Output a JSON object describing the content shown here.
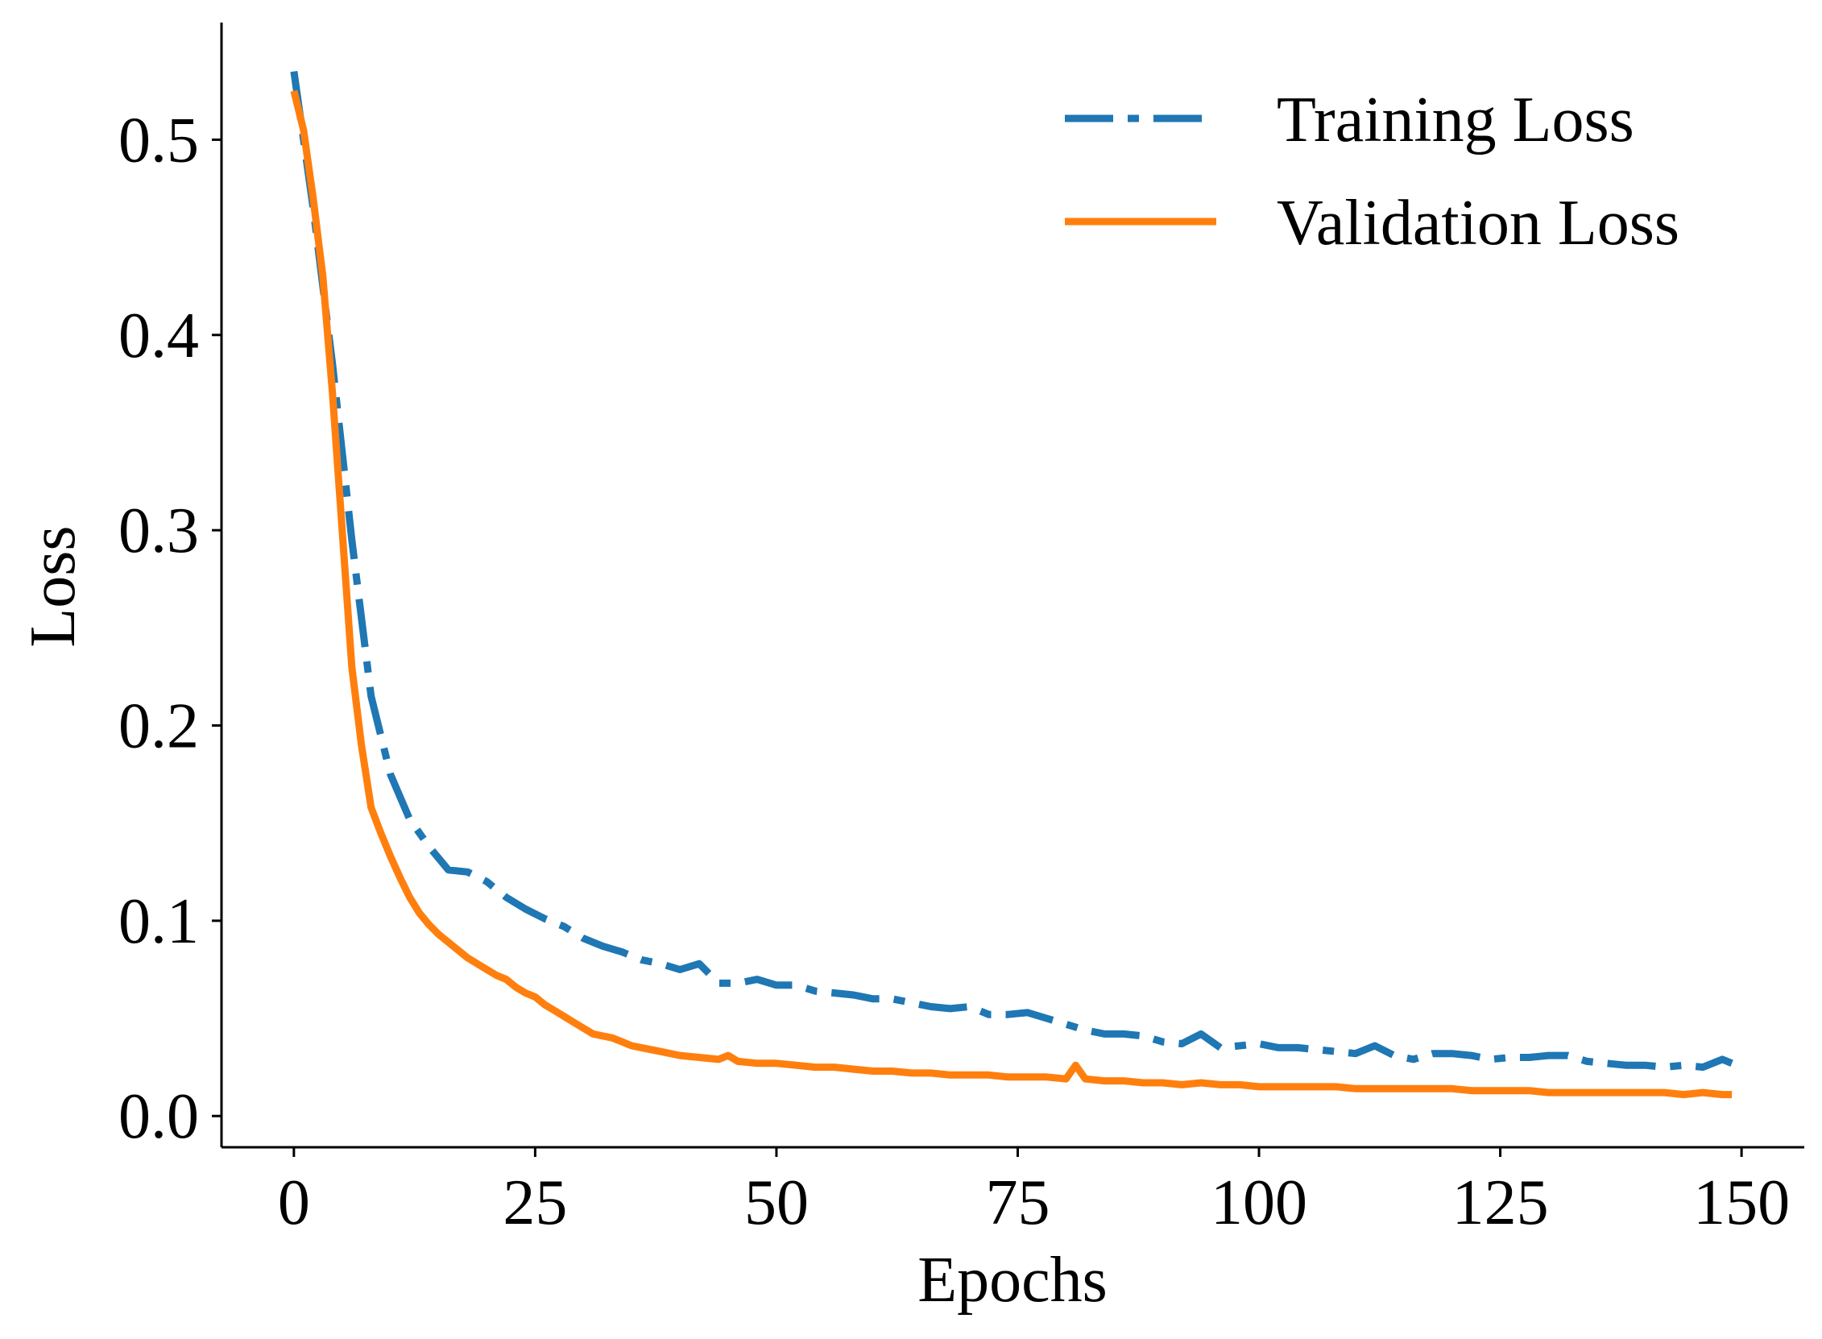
{
  "chart_data": {
    "type": "line",
    "title": "",
    "xlabel": "Epochs",
    "ylabel": "Loss",
    "xlim": [
      -7.5,
      156.5
    ],
    "ylim": [
      -0.016,
      0.56
    ],
    "xticks": [
      0,
      25,
      50,
      75,
      100,
      125,
      150
    ],
    "xtick_labels": [
      "0",
      "25",
      "50",
      "75",
      "100",
      "125",
      "150"
    ],
    "yticks": [
      0.0,
      0.1,
      0.2,
      0.3,
      0.4,
      0.5
    ],
    "ytick_labels": [
      "0.0",
      "0.1",
      "0.2",
      "0.3",
      "0.4",
      "0.5"
    ],
    "grid": false,
    "legend_position": "top-right",
    "series": [
      {
        "name": "Training Loss",
        "color": "#1f77b4",
        "style": "dashdot",
        "x": [
          0,
          2,
          4,
          6,
          8,
          10,
          12,
          14,
          16,
          18,
          20,
          22,
          24,
          26,
          28,
          30,
          32,
          34,
          36,
          38,
          40,
          42,
          44,
          46,
          48,
          50,
          52,
          54,
          56,
          58,
          60,
          62,
          64,
          66,
          68,
          70,
          72,
          74,
          76,
          78,
          80,
          82,
          84,
          86,
          88,
          90,
          92,
          94,
          96,
          98,
          100,
          102,
          104,
          106,
          108,
          110,
          112,
          114,
          116,
          118,
          120,
          122,
          124,
          126,
          128,
          130,
          132,
          134,
          136,
          138,
          140,
          142,
          144,
          146,
          148,
          149
        ],
        "y": [
          0.535,
          0.465,
          0.385,
          0.295,
          0.215,
          0.175,
          0.152,
          0.138,
          0.126,
          0.125,
          0.12,
          0.112,
          0.106,
          0.101,
          0.097,
          0.091,
          0.087,
          0.084,
          0.08,
          0.078,
          0.075,
          0.078,
          0.068,
          0.068,
          0.07,
          0.067,
          0.067,
          0.064,
          0.063,
          0.062,
          0.06,
          0.06,
          0.058,
          0.056,
          0.055,
          0.056,
          0.052,
          0.052,
          0.053,
          0.05,
          0.047,
          0.044,
          0.042,
          0.042,
          0.041,
          0.038,
          0.037,
          0.042,
          0.035,
          0.036,
          0.037,
          0.035,
          0.035,
          0.034,
          0.033,
          0.032,
          0.036,
          0.031,
          0.029,
          0.032,
          0.032,
          0.031,
          0.029,
          0.03,
          0.03,
          0.031,
          0.031,
          0.028,
          0.027,
          0.026,
          0.026,
          0.025,
          0.026,
          0.025,
          0.029,
          0.027
        ]
      },
      {
        "name": "Validation Loss",
        "color": "#ff7f0e",
        "style": "solid",
        "x": [
          0,
          1,
          2,
          3,
          4,
          5,
          6,
          7,
          8,
          9,
          10,
          11,
          12,
          13,
          14,
          15,
          16,
          17,
          18,
          19,
          20,
          21,
          22,
          23,
          24,
          25,
          26,
          27,
          28,
          29,
          30,
          31,
          32,
          33,
          34,
          35,
          36,
          38,
          40,
          42,
          44,
          45,
          46,
          48,
          50,
          52,
          54,
          56,
          58,
          60,
          62,
          64,
          66,
          68,
          70,
          72,
          74,
          76,
          78,
          80,
          81,
          82,
          84,
          86,
          88,
          90,
          92,
          94,
          96,
          98,
          100,
          102,
          104,
          106,
          108,
          110,
          112,
          114,
          116,
          118,
          120,
          122,
          124,
          126,
          128,
          130,
          132,
          134,
          136,
          138,
          140,
          142,
          144,
          146,
          148,
          149
        ],
        "y": [
          0.525,
          0.505,
          0.47,
          0.43,
          0.37,
          0.3,
          0.23,
          0.19,
          0.158,
          0.145,
          0.133,
          0.122,
          0.112,
          0.104,
          0.098,
          0.093,
          0.089,
          0.085,
          0.081,
          0.078,
          0.075,
          0.072,
          0.07,
          0.066,
          0.063,
          0.061,
          0.057,
          0.054,
          0.051,
          0.048,
          0.045,
          0.042,
          0.041,
          0.04,
          0.038,
          0.036,
          0.035,
          0.033,
          0.031,
          0.03,
          0.029,
          0.031,
          0.028,
          0.027,
          0.027,
          0.026,
          0.025,
          0.025,
          0.024,
          0.023,
          0.023,
          0.022,
          0.022,
          0.021,
          0.021,
          0.021,
          0.02,
          0.02,
          0.02,
          0.019,
          0.026,
          0.019,
          0.018,
          0.018,
          0.017,
          0.017,
          0.016,
          0.017,
          0.016,
          0.016,
          0.015,
          0.015,
          0.015,
          0.015,
          0.015,
          0.014,
          0.014,
          0.014,
          0.014,
          0.014,
          0.014,
          0.013,
          0.013,
          0.013,
          0.013,
          0.012,
          0.012,
          0.012,
          0.012,
          0.012,
          0.012,
          0.012,
          0.011,
          0.012,
          0.011,
          0.011
        ]
      }
    ]
  }
}
